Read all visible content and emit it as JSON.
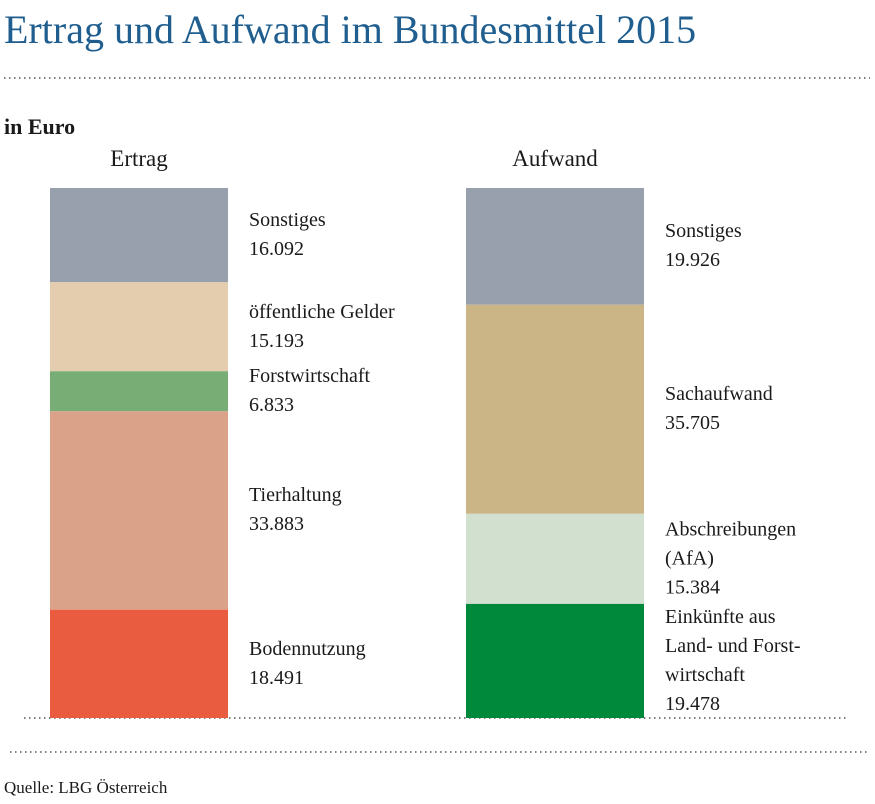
{
  "chart_data": {
    "type": "stacked-column",
    "title": "Ertrag und Aufwand im Bundesmittel 2015",
    "unit": "in Euro",
    "source": "Quelle: LBG Österreich",
    "stacks": [
      {
        "name": "Ertrag",
        "segments": [
          "Sonstiges",
          "öffentliche Gelder",
          "Forstwirtschaft",
          "Tierhaltung",
          "Bodennutzung"
        ],
        "colors": [
          "#99a0ad",
          "#e3cdae",
          "#78ae76",
          "#dba28a",
          "#e95c3f"
        ],
        "values": [
          16092,
          15193,
          6833,
          33883,
          18491
        ],
        "value_labels": [
          "16.092",
          "15.193",
          "6.833",
          "33.883",
          "18.491"
        ]
      },
      {
        "name": "Aufwand",
        "segments": [
          "Sonstiges",
          "Sachaufwand",
          "Abschreibungen\n(AfA)",
          "Einkünfte aus\nLand- und Forst-\nwirtschaft"
        ],
        "colors": [
          "#99a0ad",
          "#cbb486",
          "#d1e0cf",
          "#00883b"
        ],
        "values": [
          19926,
          35705,
          15384,
          19478
        ],
        "value_labels": [
          "19.926",
          "35.705",
          "15.384",
          "19.478"
        ]
      }
    ]
  }
}
